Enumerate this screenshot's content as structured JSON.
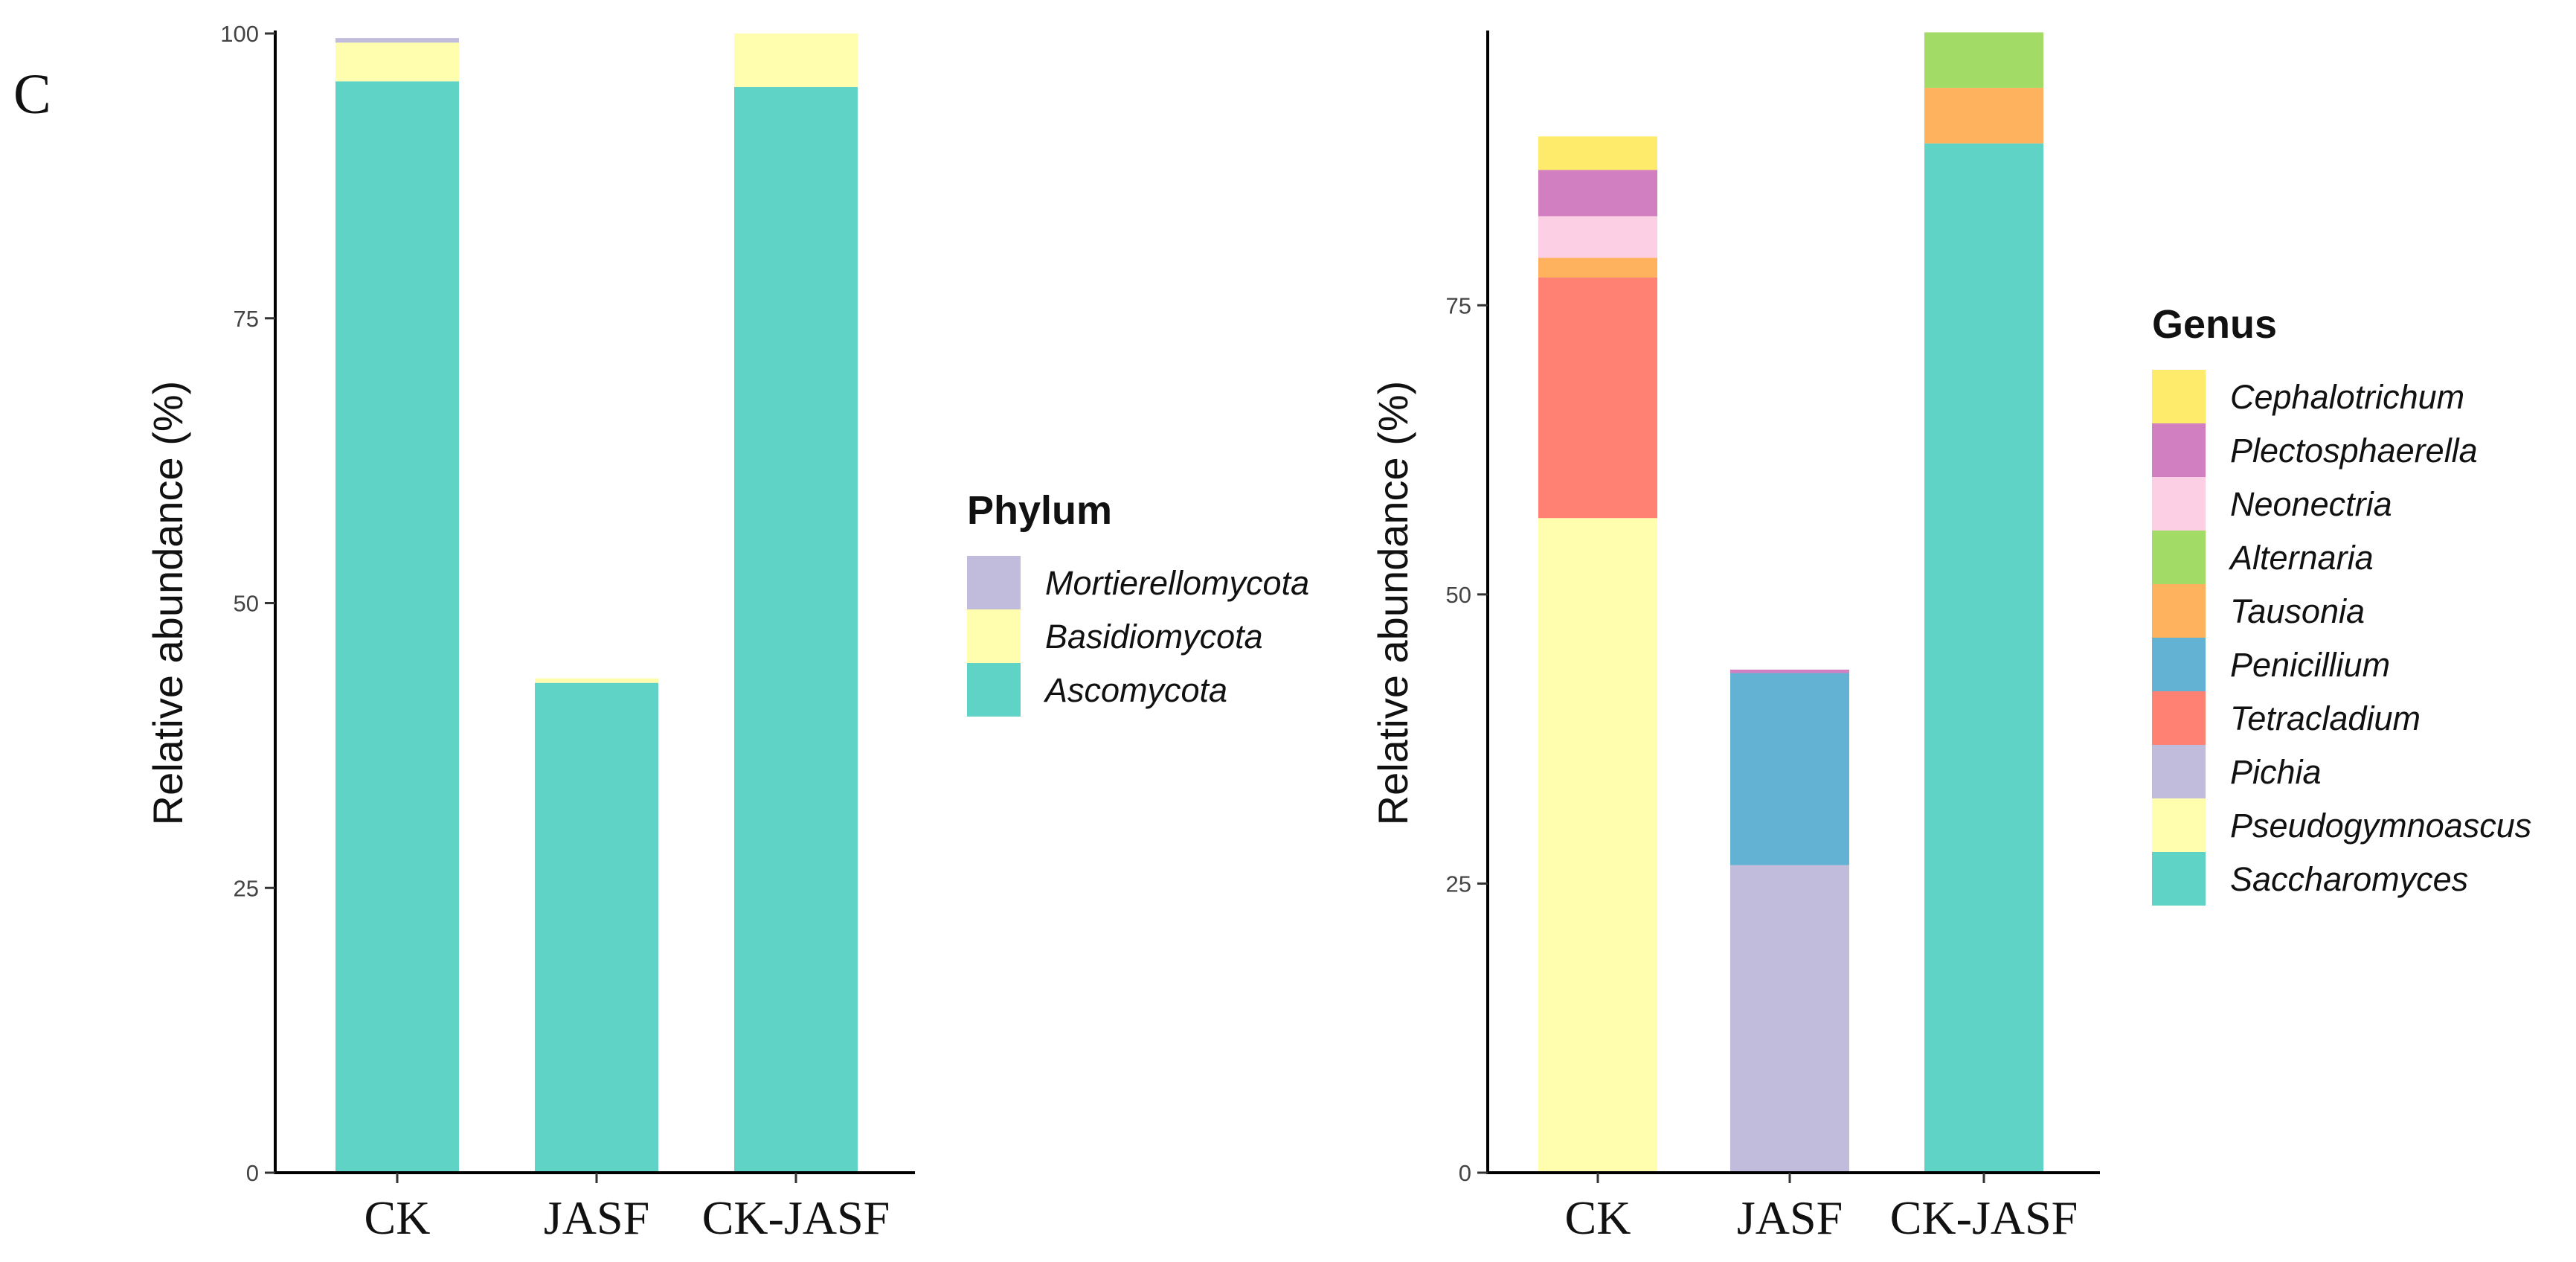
{
  "panel_label": "C",
  "chart_data": [
    {
      "type": "bar",
      "stacked": true,
      "categories": [
        "CK",
        "JASF",
        "CK-JASF"
      ],
      "ylabel": "Relative abundance (%)",
      "xlabel": "",
      "ylim": [
        0,
        100
      ],
      "yticks": [
        0,
        25,
        50,
        75,
        100
      ],
      "legend_title": "Phylum",
      "legend_position": "right",
      "series": [
        {
          "name": "Ascomycota",
          "color": "#5FD3C6",
          "values": [
            95.8,
            43.0,
            95.3
          ]
        },
        {
          "name": "Basidiomycota",
          "color": "#FFFDAE",
          "values": [
            3.4,
            0.4,
            4.7
          ]
        },
        {
          "name": "Mortierellomycota",
          "color": "#C1BCDB",
          "values": [
            0.4,
            0.0,
            0.0
          ]
        }
      ]
    },
    {
      "type": "bar",
      "stacked": true,
      "categories": [
        "CK",
        "JASF",
        "CK-JASF"
      ],
      "ylabel": "Relative abundance (%)",
      "xlabel": "",
      "ylim": [
        0,
        98.5
      ],
      "yticks": [
        0,
        25,
        50,
        75
      ],
      "legend_title": "Genus",
      "legend_position": "right",
      "series": [
        {
          "name": "Saccharomyces",
          "color": "#5FD3C6",
          "values": [
            0,
            0,
            89.0
          ]
        },
        {
          "name": "Pseudogymnoascus",
          "color": "#FFFDAE",
          "values": [
            56.6,
            0,
            0
          ]
        },
        {
          "name": "Pichia",
          "color": "#C1BCDB",
          "values": [
            0,
            26.6,
            0
          ]
        },
        {
          "name": "Tetracladium",
          "color": "#FF8173",
          "values": [
            20.8,
            0,
            0
          ]
        },
        {
          "name": "Penicillium",
          "color": "#63B2D3",
          "values": [
            0,
            16.6,
            0
          ]
        },
        {
          "name": "Tausonia",
          "color": "#FFB25E",
          "values": [
            1.7,
            0,
            4.8
          ]
        },
        {
          "name": "Alternaria",
          "color": "#A2DC67",
          "values": [
            0,
            0,
            4.8
          ]
        },
        {
          "name": "Neonectria",
          "color": "#FDCFE4",
          "values": [
            3.6,
            0,
            0
          ]
        },
        {
          "name": "Plectosphaerella",
          "color": "#D27FC1",
          "values": [
            4.0,
            0.3,
            0
          ]
        },
        {
          "name": "Cephalotrichum",
          "color": "#FFEB6B",
          "values": [
            2.9,
            0,
            0
          ]
        }
      ]
    }
  ]
}
